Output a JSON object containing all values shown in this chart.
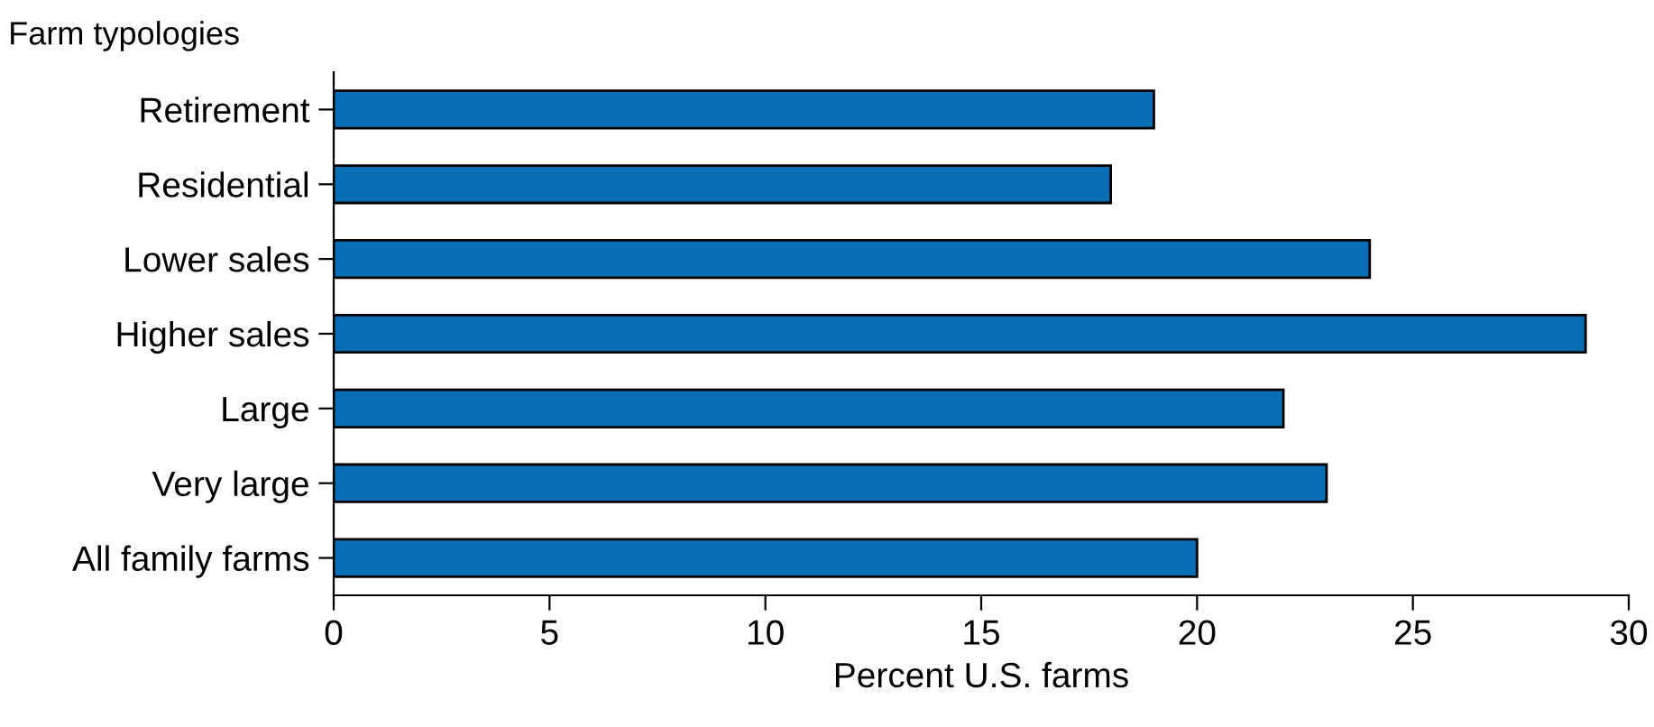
{
  "chart_data": {
    "type": "bar",
    "orientation": "horizontal",
    "ylabel": "Farm typologies",
    "xlabel": "Percent U.S. farms",
    "categories": [
      "Retirement",
      "Residential",
      "Lower sales",
      "Higher sales",
      "Large",
      "Very large",
      "All family farms"
    ],
    "values": [
      19,
      18,
      24,
      29,
      22,
      23,
      20
    ],
    "color": "#0a6eb4",
    "xlim": [
      0,
      30
    ],
    "xticks": [
      0,
      5,
      10,
      15,
      20,
      25,
      30
    ],
    "grid": false,
    "legend": false
  }
}
